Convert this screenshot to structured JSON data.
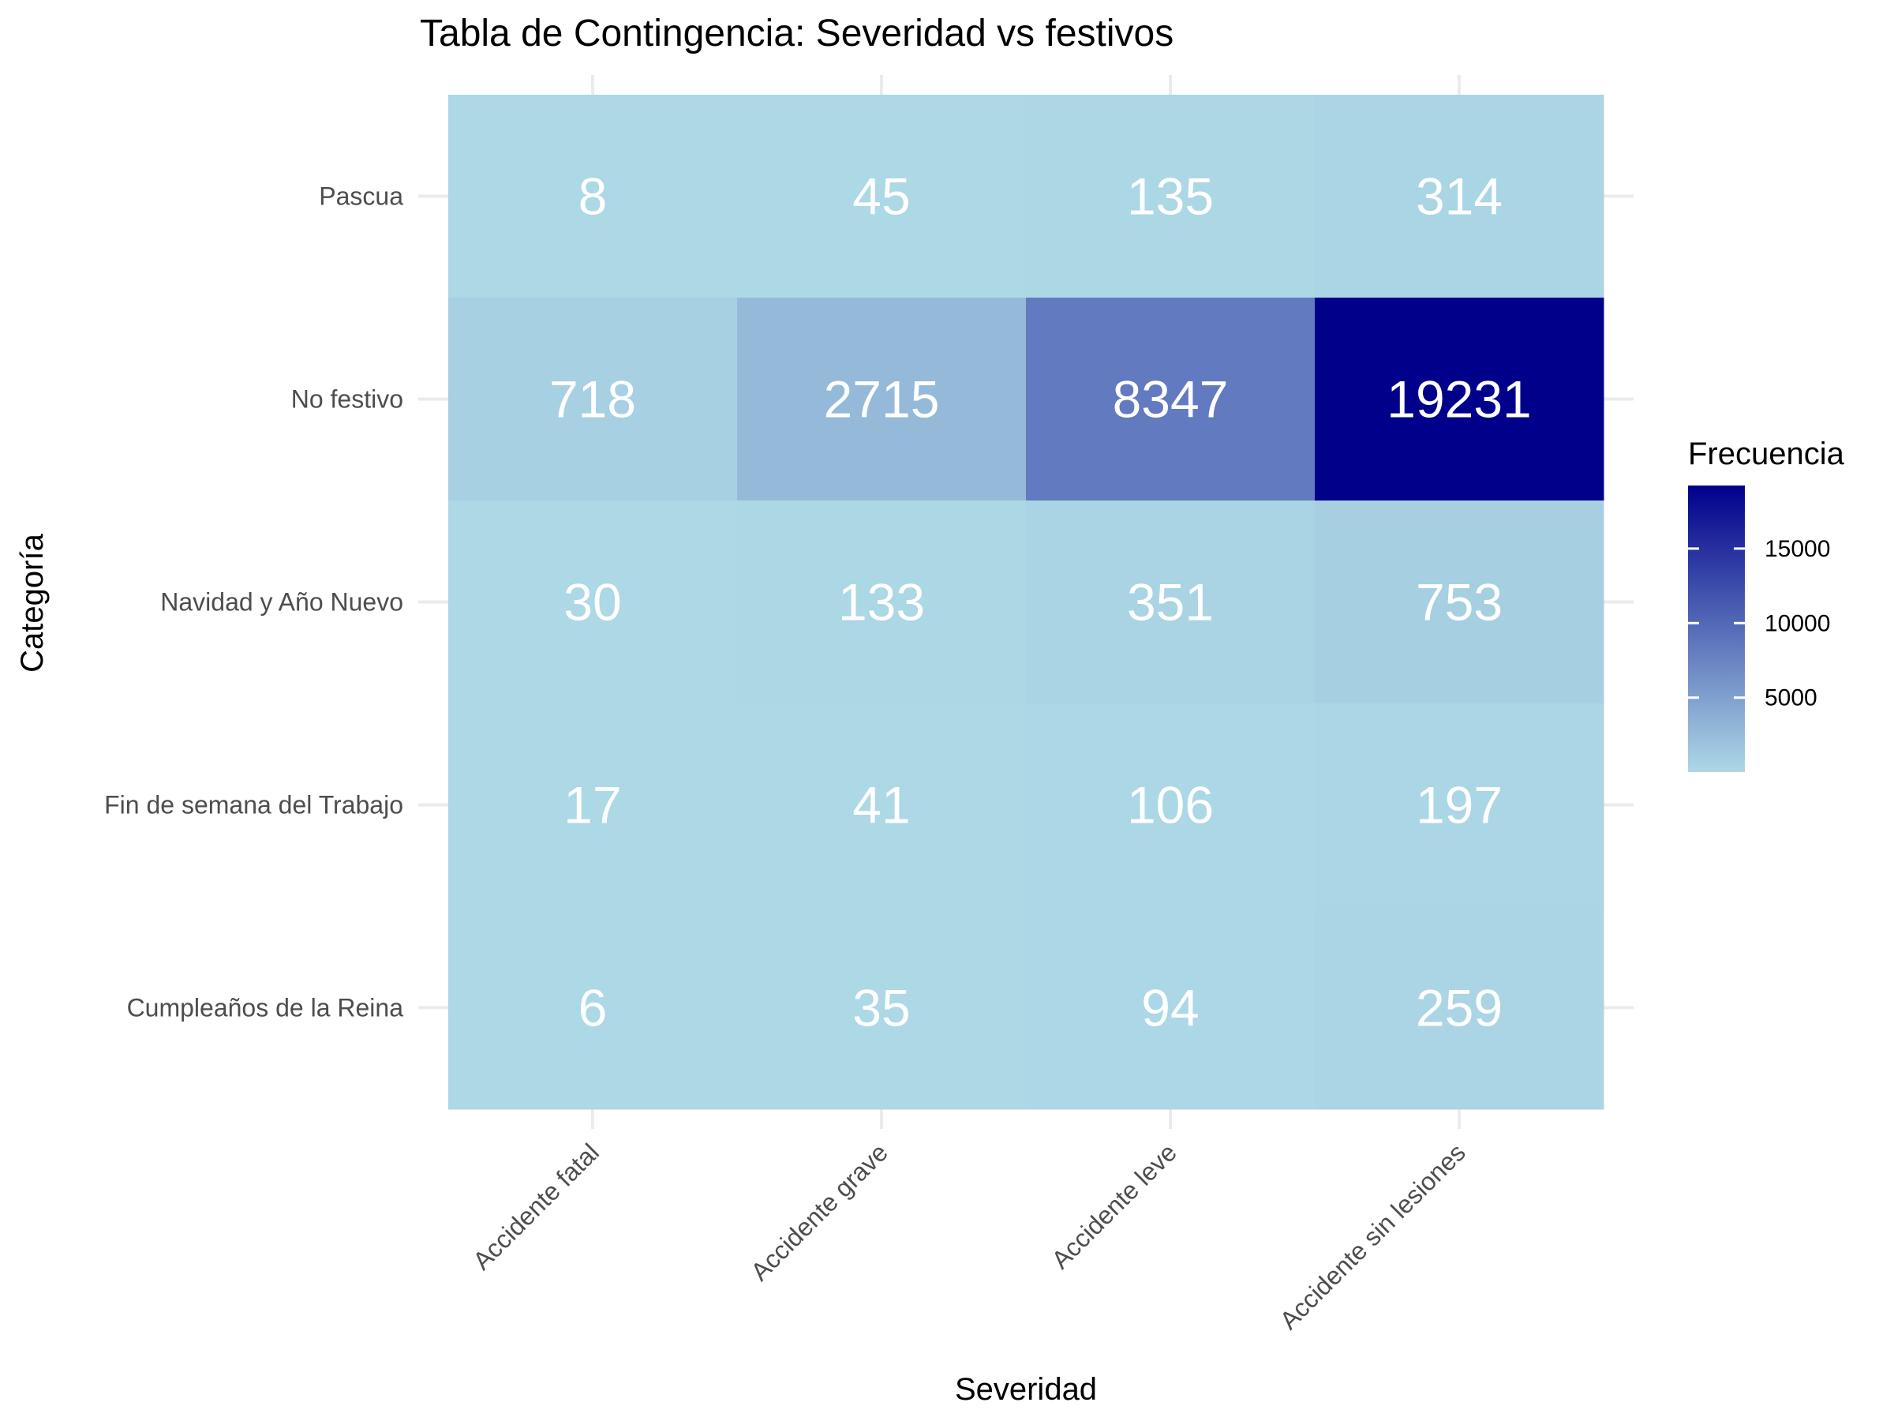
{
  "chart_data": {
    "type": "heatmap",
    "title": "Tabla de Contingencia: Severidad vs festivos",
    "xlabel": "Severidad",
    "ylabel": "Categoría",
    "x_categories": [
      "Accidente fatal",
      "Accidente grave",
      "Accidente leve",
      "Accidente sin lesiones"
    ],
    "y_categories": [
      "Pascua",
      "No festivo",
      "Navidad y Año Nuevo",
      "Fin de semana del Trabajo",
      "Cumpleaños de la Reina"
    ],
    "values": [
      [
        8,
        45,
        135,
        314
      ],
      [
        718,
        2715,
        8347,
        19231
      ],
      [
        30,
        133,
        351,
        753
      ],
      [
        17,
        41,
        106,
        197
      ],
      [
        6,
        35,
        94,
        259
      ]
    ],
    "legend": {
      "title": "Frecuencia",
      "ticks": [
        5000,
        10000,
        15000
      ],
      "position": "right",
      "range": [
        6,
        19231
      ]
    },
    "colors": {
      "low": "#add8e6",
      "high": "#00008b"
    },
    "grid": true
  }
}
